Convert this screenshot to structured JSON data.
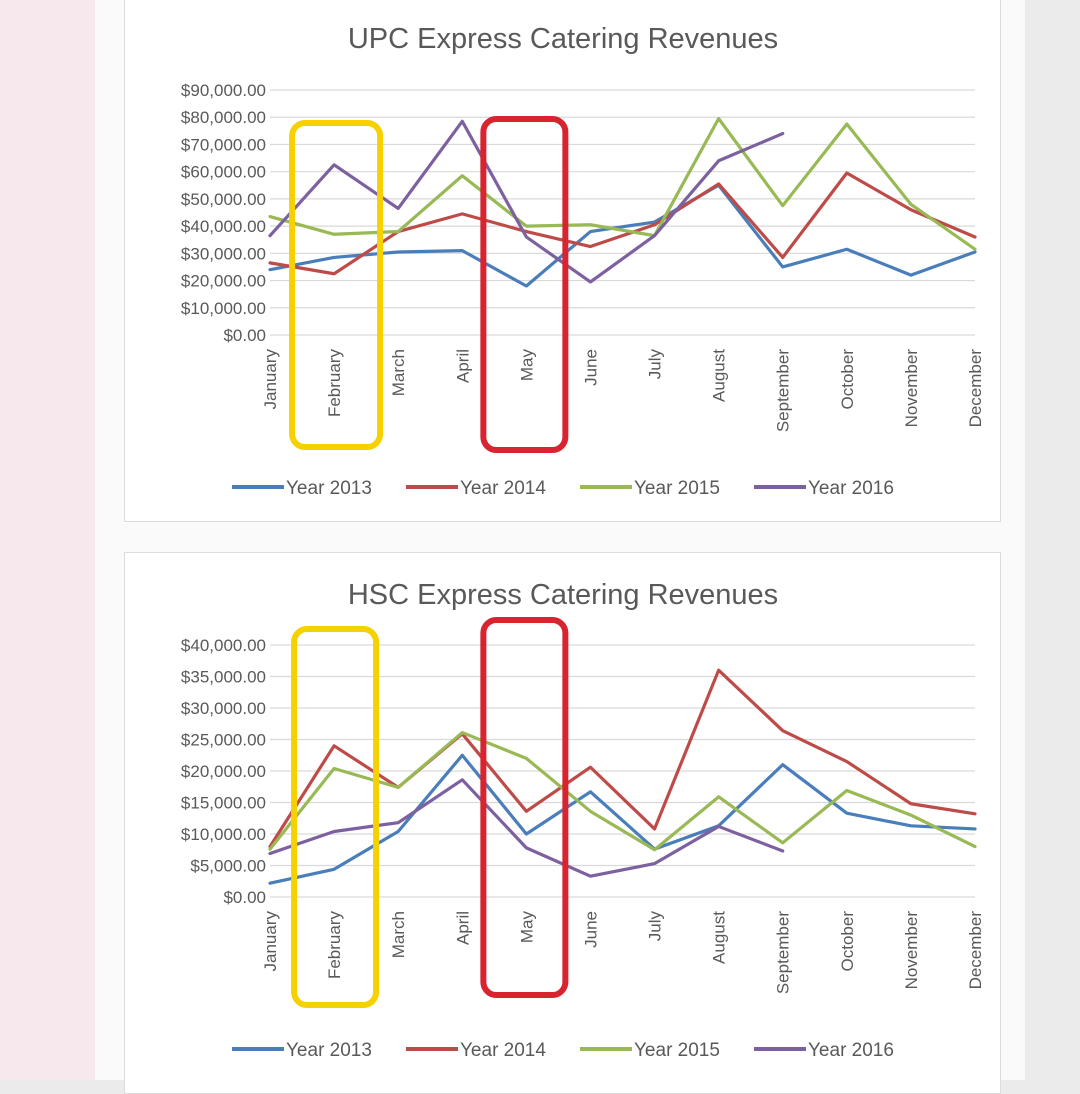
{
  "chart_data": [
    {
      "type": "line",
      "title": "UPC Express Catering Revenues",
      "xlabel": "",
      "ylabel": "",
      "categories": [
        "January",
        "February",
        "March",
        "April",
        "May",
        "June",
        "July",
        "August",
        "September",
        "October",
        "November",
        "December"
      ],
      "y_tick_labels": [
        "$90,000.00",
        "$80,000.00",
        "$70,000.00",
        "$60,000.00",
        "$50,000.00",
        "$40,000.00",
        "$30,000.00",
        "$20,000.00",
        "$10,000.00",
        "$0.00"
      ],
      "y_ticks": [
        90000,
        80000,
        70000,
        60000,
        50000,
        40000,
        30000,
        20000,
        10000,
        0
      ],
      "ylim": [
        0,
        90000
      ],
      "grid": true,
      "legend": "bottom",
      "series": [
        {
          "name": "Year 2013",
          "color": "#4a7ebb",
          "values": [
            24000,
            28500,
            30500,
            31000,
            18000,
            38000,
            41500,
            55000,
            25000,
            31500,
            22000,
            30500
          ]
        },
        {
          "name": "Year 2014",
          "color": "#be4b48",
          "values": [
            26500,
            22500,
            38000,
            44500,
            38000,
            32500,
            40500,
            55500,
            28500,
            59500,
            46000,
            36000
          ]
        },
        {
          "name": "Year 2015",
          "color": "#98b954",
          "values": [
            43500,
            37000,
            38000,
            58500,
            40000,
            40500,
            36500,
            79500,
            47500,
            77500,
            48000,
            31500
          ]
        },
        {
          "name": "Year 2016",
          "color": "#7d60a0",
          "values": [
            36500,
            62500,
            46500,
            78500,
            36000,
            19500,
            36500,
            64000,
            74000,
            null,
            null,
            null
          ]
        }
      ],
      "highlights": [
        {
          "category": "February",
          "color": "#f5d100"
        },
        {
          "category": "May",
          "color": "#d9242f"
        }
      ]
    },
    {
      "type": "line",
      "title": "HSC Express Catering Revenues",
      "xlabel": "",
      "ylabel": "",
      "categories": [
        "January",
        "February",
        "March",
        "April",
        "May",
        "June",
        "July",
        "August",
        "September",
        "October",
        "November",
        "December"
      ],
      "y_tick_labels": [
        "$40,000.00",
        "$35,000.00",
        "$30,000.00",
        "$25,000.00",
        "$20,000.00",
        "$15,000.00",
        "$10,000.00",
        "$5,000.00",
        "$0.00"
      ],
      "y_ticks": [
        40000,
        35000,
        30000,
        25000,
        20000,
        15000,
        10000,
        5000,
        0
      ],
      "ylim": [
        0,
        40000
      ],
      "grid": true,
      "legend": "bottom",
      "series": [
        {
          "name": "Year 2013",
          "color": "#4a7ebb",
          "values": [
            2200,
            4400,
            10400,
            22500,
            10000,
            16700,
            7600,
            11300,
            21000,
            13300,
            11300,
            10800
          ]
        },
        {
          "name": "Year 2014",
          "color": "#be4b48",
          "values": [
            8000,
            24000,
            17400,
            25900,
            13600,
            20600,
            10800,
            36000,
            26400,
            21500,
            14800,
            13200
          ]
        },
        {
          "name": "Year 2015",
          "color": "#98b954",
          "values": [
            7600,
            20400,
            17400,
            26100,
            22000,
            13600,
            7500,
            15900,
            8600,
            16900,
            13000,
            8000
          ]
        },
        {
          "name": "Year 2016",
          "color": "#7d60a0",
          "values": [
            6900,
            10400,
            11800,
            18600,
            7800,
            3300,
            5300,
            11200,
            7300,
            null,
            null,
            null
          ]
        }
      ],
      "highlights": [
        {
          "category": "February",
          "color": "#f5d100"
        },
        {
          "category": "May",
          "color": "#d9242f"
        }
      ]
    }
  ]
}
